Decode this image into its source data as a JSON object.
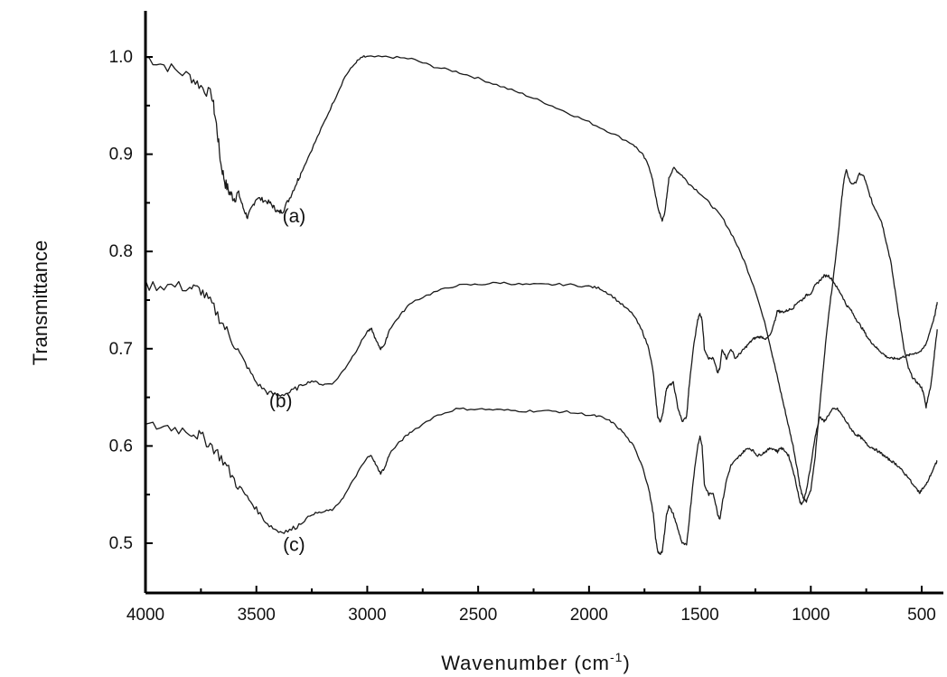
{
  "chart_data": {
    "type": "line",
    "xlabel": "Wavenumber (cm",
    "xlabel_superscript": "-1",
    "xlabel_suffix": ")",
    "ylabel": "Transmittance",
    "xlim": [
      4000,
      430
    ],
    "ylim": [
      0.45,
      1.05
    ],
    "x_reversed": true,
    "x_ticks": [
      4000,
      3500,
      3000,
      2500,
      2000,
      1500,
      1000,
      500
    ],
    "x_tick_labels": [
      "4000",
      "3500",
      "3000",
      "2500",
      "2000",
      "1500",
      "1000",
      "500"
    ],
    "y_ticks": [
      0.5,
      0.6,
      0.7,
      0.8,
      0.9,
      1.0
    ],
    "y_tick_labels": [
      "0.5",
      "0.6",
      "0.7",
      "0.8",
      "0.9",
      "1.0"
    ],
    "grid": false,
    "line_color": "#1a1a1a",
    "series": [
      {
        "name": "(a)",
        "label_at": [
          3330,
          0.83
        ],
        "x": [
          4000,
          3900,
          3800,
          3750,
          3700,
          3680,
          3660,
          3640,
          3620,
          3600,
          3580,
          3560,
          3540,
          3520,
          3500,
          3470,
          3440,
          3420,
          3400,
          3380,
          3350,
          3320,
          3300,
          3250,
          3200,
          3150,
          3100,
          3050,
          3020,
          3000,
          2900,
          2800,
          2700,
          2600,
          2500,
          2400,
          2300,
          2200,
          2100,
          2000,
          1900,
          1800,
          1760,
          1730,
          1710,
          1690,
          1680,
          1670,
          1660,
          1650,
          1640,
          1620,
          1600,
          1580,
          1550,
          1500,
          1450,
          1400,
          1350,
          1300,
          1250,
          1200,
          1180,
          1160,
          1140,
          1120,
          1100,
          1080,
          1060,
          1050,
          1040,
          1030,
          1020,
          1000,
          980,
          960,
          940,
          920,
          900,
          880,
          860,
          850,
          840,
          820,
          800,
          780,
          760,
          740,
          720,
          700,
          680,
          660,
          640,
          620,
          600,
          580,
          560,
          540,
          520,
          500,
          490,
          480,
          470,
          460,
          450,
          440,
          430
        ],
        "y": [
          1.0,
          0.99,
          0.98,
          0.97,
          0.96,
          0.93,
          0.89,
          0.87,
          0.86,
          0.855,
          0.86,
          0.845,
          0.835,
          0.845,
          0.855,
          0.853,
          0.85,
          0.845,
          0.84,
          0.842,
          0.855,
          0.87,
          0.88,
          0.905,
          0.93,
          0.955,
          0.98,
          0.995,
          1.0,
          1.0,
          1.0,
          0.998,
          0.99,
          0.985,
          0.978,
          0.97,
          0.962,
          0.953,
          0.943,
          0.933,
          0.922,
          0.91,
          0.9,
          0.888,
          0.87,
          0.845,
          0.838,
          0.832,
          0.838,
          0.855,
          0.875,
          0.886,
          0.882,
          0.878,
          0.87,
          0.86,
          0.848,
          0.835,
          0.815,
          0.79,
          0.76,
          0.72,
          0.7,
          0.68,
          0.66,
          0.64,
          0.62,
          0.6,
          0.575,
          0.56,
          0.55,
          0.545,
          0.543,
          0.555,
          0.59,
          0.64,
          0.69,
          0.735,
          0.77,
          0.81,
          0.855,
          0.875,
          0.883,
          0.87,
          0.87,
          0.88,
          0.877,
          0.862,
          0.848,
          0.84,
          0.83,
          0.81,
          0.79,
          0.76,
          0.73,
          0.7,
          0.68,
          0.67,
          0.665,
          0.66,
          0.652,
          0.64,
          0.652,
          0.66,
          0.68,
          0.7,
          0.72
        ]
      },
      {
        "name": "(b)",
        "label_at": [
          3390,
          0.64
        ],
        "x": [
          4000,
          3900,
          3800,
          3750,
          3700,
          3650,
          3600,
          3550,
          3500,
          3450,
          3400,
          3350,
          3300,
          3250,
          3200,
          3150,
          3100,
          3050,
          3000,
          2980,
          2960,
          2940,
          2920,
          2900,
          2850,
          2800,
          2700,
          2600,
          2500,
          2400,
          2300,
          2200,
          2100,
          2000,
          1950,
          1900,
          1850,
          1800,
          1760,
          1730,
          1710,
          1700,
          1690,
          1680,
          1670,
          1660,
          1650,
          1640,
          1620,
          1600,
          1580,
          1560,
          1550,
          1530,
          1510,
          1500,
          1490,
          1480,
          1460,
          1440,
          1420,
          1410,
          1400,
          1380,
          1360,
          1340,
          1320,
          1300,
          1280,
          1260,
          1240,
          1220,
          1200,
          1180,
          1160,
          1150,
          1140,
          1120,
          1100,
          1080,
          1060,
          1040,
          1020,
          1000,
          980,
          960,
          940,
          920,
          900,
          880,
          860,
          840,
          820,
          800,
          780,
          760,
          740,
          720,
          700,
          680,
          660,
          640,
          620,
          600,
          580,
          560,
          540,
          520,
          500,
          480,
          460,
          440,
          430
        ],
        "y": [
          0.765,
          0.765,
          0.763,
          0.76,
          0.745,
          0.725,
          0.705,
          0.685,
          0.665,
          0.655,
          0.652,
          0.655,
          0.662,
          0.667,
          0.663,
          0.665,
          0.68,
          0.698,
          0.718,
          0.72,
          0.708,
          0.7,
          0.705,
          0.72,
          0.735,
          0.748,
          0.758,
          0.765,
          0.766,
          0.768,
          0.766,
          0.766,
          0.766,
          0.764,
          0.762,
          0.755,
          0.745,
          0.735,
          0.718,
          0.7,
          0.675,
          0.65,
          0.63,
          0.625,
          0.63,
          0.645,
          0.66,
          0.662,
          0.665,
          0.64,
          0.625,
          0.63,
          0.658,
          0.7,
          0.73,
          0.736,
          0.73,
          0.7,
          0.69,
          0.69,
          0.675,
          0.68,
          0.7,
          0.69,
          0.7,
          0.69,
          0.695,
          0.7,
          0.705,
          0.71,
          0.712,
          0.712,
          0.71,
          0.715,
          0.73,
          0.74,
          0.738,
          0.738,
          0.74,
          0.742,
          0.748,
          0.75,
          0.755,
          0.757,
          0.765,
          0.77,
          0.775,
          0.775,
          0.77,
          0.762,
          0.755,
          0.745,
          0.74,
          0.732,
          0.725,
          0.718,
          0.71,
          0.705,
          0.7,
          0.696,
          0.692,
          0.69,
          0.69,
          0.69,
          0.692,
          0.693,
          0.695,
          0.696,
          0.698,
          0.705,
          0.72,
          0.735,
          0.748
        ]
      },
      {
        "name": "(c)",
        "label_at": [
          3330,
          0.492
        ],
        "x": [
          4000,
          3900,
          3800,
          3750,
          3700,
          3650,
          3600,
          3550,
          3500,
          3450,
          3400,
          3350,
          3300,
          3250,
          3200,
          3150,
          3100,
          3050,
          3000,
          2980,
          2960,
          2940,
          2920,
          2900,
          2850,
          2800,
          2700,
          2600,
          2500,
          2400,
          2300,
          2200,
          2100,
          2000,
          1950,
          1900,
          1850,
          1800,
          1760,
          1730,
          1710,
          1700,
          1690,
          1680,
          1670,
          1660,
          1650,
          1640,
          1620,
          1600,
          1580,
          1560,
          1550,
          1530,
          1510,
          1500,
          1490,
          1480,
          1460,
          1440,
          1420,
          1410,
          1400,
          1380,
          1360,
          1340,
          1320,
          1300,
          1280,
          1260,
          1240,
          1220,
          1200,
          1180,
          1160,
          1150,
          1140,
          1120,
          1100,
          1080,
          1060,
          1050,
          1040,
          1030,
          1020,
          1000,
          980,
          960,
          940,
          920,
          900,
          880,
          860,
          840,
          820,
          800,
          780,
          760,
          740,
          720,
          700,
          680,
          660,
          640,
          620,
          600,
          580,
          560,
          540,
          520,
          510,
          500,
          480,
          460,
          440,
          430
        ],
        "y": [
          0.62,
          0.62,
          0.615,
          0.61,
          0.6,
          0.585,
          0.565,
          0.55,
          0.535,
          0.52,
          0.512,
          0.513,
          0.52,
          0.53,
          0.532,
          0.535,
          0.55,
          0.57,
          0.588,
          0.59,
          0.58,
          0.572,
          0.578,
          0.592,
          0.605,
          0.615,
          0.63,
          0.638,
          0.638,
          0.637,
          0.636,
          0.636,
          0.635,
          0.632,
          0.63,
          0.625,
          0.615,
          0.6,
          0.58,
          0.555,
          0.53,
          0.505,
          0.492,
          0.488,
          0.492,
          0.51,
          0.53,
          0.538,
          0.53,
          0.515,
          0.5,
          0.498,
          0.52,
          0.565,
          0.6,
          0.61,
          0.6,
          0.56,
          0.55,
          0.552,
          0.53,
          0.525,
          0.54,
          0.565,
          0.58,
          0.585,
          0.59,
          0.595,
          0.598,
          0.595,
          0.59,
          0.592,
          0.595,
          0.598,
          0.596,
          0.594,
          0.598,
          0.596,
          0.59,
          0.575,
          0.555,
          0.543,
          0.54,
          0.545,
          0.555,
          0.58,
          0.61,
          0.63,
          0.625,
          0.632,
          0.638,
          0.638,
          0.632,
          0.625,
          0.618,
          0.612,
          0.61,
          0.605,
          0.6,
          0.598,
          0.595,
          0.592,
          0.588,
          0.585,
          0.582,
          0.578,
          0.572,
          0.568,
          0.56,
          0.555,
          0.552,
          0.555,
          0.56,
          0.57,
          0.58,
          0.585
        ]
      }
    ]
  }
}
